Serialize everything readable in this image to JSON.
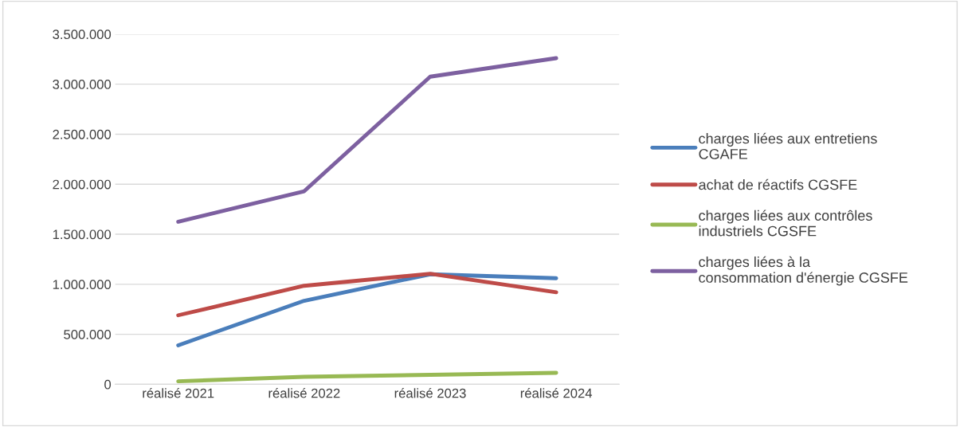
{
  "chart_data": {
    "type": "line",
    "categories": [
      "réalisé 2021",
      "réalisé 2022",
      "réalisé 2023",
      "réalisé 2024"
    ],
    "series": [
      {
        "name": "charges liées aux entretiens CGAFE",
        "color": "#4a7ebb",
        "values": [
          390000,
          835000,
          1100000,
          1060000
        ]
      },
      {
        "name": "achat de réactifs CGSFE",
        "color": "#be4b48",
        "values": [
          690000,
          985000,
          1105000,
          920000
        ]
      },
      {
        "name": "charges liées aux contrôles industriels CGSFE",
        "color": "#98b954",
        "values": [
          30000,
          75000,
          95000,
          115000
        ]
      },
      {
        "name": "charges liées à la consommation d'énergie CGSFE",
        "color": "#7d60a0",
        "values": [
          1625000,
          1930000,
          3075000,
          3260000
        ]
      }
    ],
    "ylim": [
      0,
      3500000
    ],
    "yticks": [
      0,
      {
        "value": 500000,
        "label": "500.000"
      },
      {
        "value": 1000000,
        "label": "1.000.000"
      },
      {
        "value": 1500000,
        "label": "1.500.000"
      },
      {
        "value": 2000000,
        "label": "2.000.000"
      },
      {
        "value": 2500000,
        "label": "2.500.000"
      },
      {
        "value": 3000000,
        "label": "3.000.000"
      },
      {
        "value": 3500000,
        "label": "3.500.000"
      }
    ],
    "grid": "y",
    "legend": "right",
    "marker": "none",
    "line_style": "solid"
  }
}
